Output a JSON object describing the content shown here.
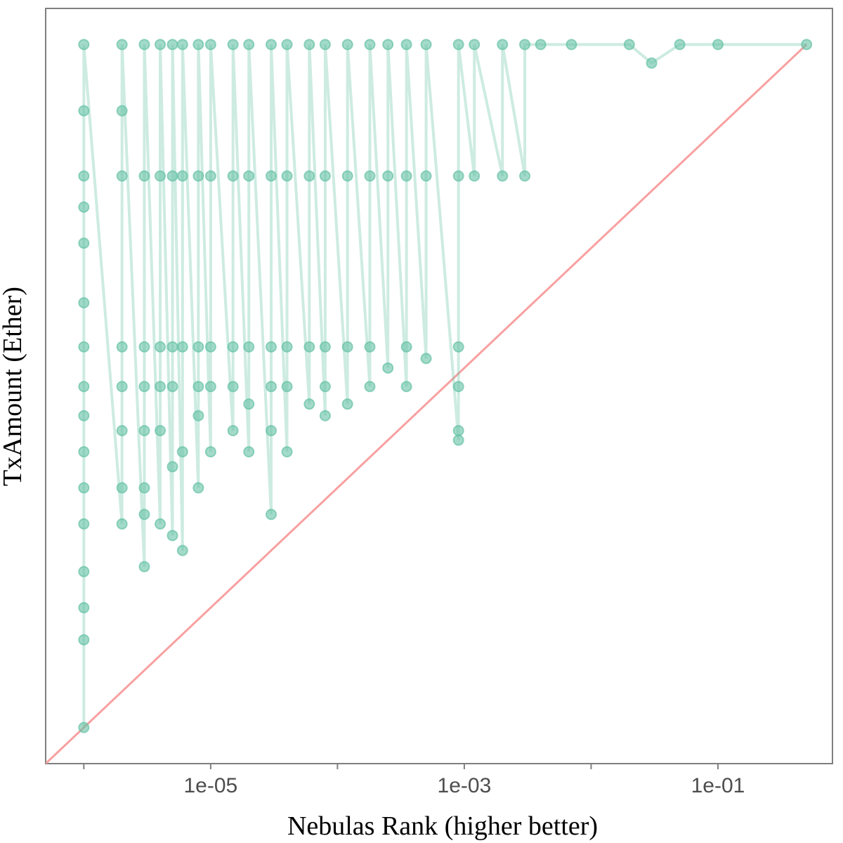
{
  "chart_data": {
    "type": "line-scatter",
    "x_label": "Nebulas Rank (higher better)",
    "y_label": "TxAmount (Ether)",
    "xscale": "log",
    "yscale": "log",
    "xlim": [
      5e-07,
      0.8
    ],
    "ylim": [
      5e-07,
      1
    ],
    "xticks": [
      {
        "value": 1e-05,
        "label": "1e-05"
      },
      {
        "value": 0.001,
        "label": "1e-03"
      },
      {
        "value": 0.1,
        "label": "1e-01"
      }
    ],
    "xticks_minor": [
      1e-06,
      0.0001,
      0.01
    ],
    "series": [
      {
        "color": "#66c2a5",
        "x": [
          1e-06,
          1e-06,
          1e-06,
          1e-06,
          1e-06,
          1e-06,
          1e-06,
          1e-06,
          1e-06,
          1e-06,
          1e-06,
          1e-06,
          1e-06,
          1e-06,
          1e-06,
          1e-06,
          2e-06,
          2e-06,
          2e-06,
          2e-06,
          2e-06,
          2e-06,
          2e-06,
          2e-06,
          3e-06,
          3e-06,
          3e-06,
          3e-06,
          3e-06,
          3e-06,
          3e-06,
          3e-06,
          4e-06,
          4e-06,
          4e-06,
          4e-06,
          4e-06,
          4e-06,
          5e-06,
          5e-06,
          5e-06,
          5e-06,
          5e-06,
          5e-06,
          6e-06,
          6e-06,
          6e-06,
          6e-06,
          6e-06,
          8e-06,
          8e-06,
          8e-06,
          8e-06,
          8e-06,
          8e-06,
          1e-05,
          1e-05,
          1e-05,
          1e-05,
          1e-05,
          1.5e-05,
          1.5e-05,
          1.5e-05,
          1.5e-05,
          1.5e-05,
          2e-05,
          2e-05,
          2e-05,
          2e-05,
          2e-05,
          3e-05,
          3e-05,
          3e-05,
          3e-05,
          3e-05,
          3e-05,
          4e-05,
          4e-05,
          4e-05,
          4e-05,
          4e-05,
          6e-05,
          6e-05,
          6e-05,
          6e-05,
          8e-05,
          8e-05,
          8e-05,
          8e-05,
          8e-05,
          0.00012,
          0.00012,
          0.00012,
          0.00012,
          0.00018,
          0.00018,
          0.00018,
          0.00018,
          0.00025,
          0.00025,
          0.00025,
          0.00035,
          0.00035,
          0.00035,
          0.00035,
          0.0005,
          0.0005,
          0.0005,
          0.0009,
          0.0009,
          0.0009,
          0.0009,
          0.0009,
          0.0009,
          0.0012,
          0.0012,
          0.002,
          0.002,
          0.003,
          0.003,
          0.004,
          0.007,
          0.02,
          0.03,
          0.05,
          0.1,
          0.5
        ],
        "values": [
          1e-06,
          5.4e-06,
          1e-05,
          2e-05,
          5e-05,
          0.0001,
          0.0002,
          0.0004,
          0.0007,
          0.0015,
          0.0035,
          0.011,
          0.022,
          0.04,
          0.14,
          0.5,
          5e-05,
          0.0001,
          0.0003,
          0.0007,
          0.0015,
          0.04,
          0.14,
          0.5,
          2.2e-05,
          6e-05,
          0.0001,
          0.0003,
          0.0007,
          0.0015,
          0.04,
          0.5,
          5e-05,
          0.0003,
          0.0007,
          0.0015,
          0.04,
          0.5,
          4e-05,
          0.00015,
          0.0007,
          0.0015,
          0.04,
          0.5,
          3e-05,
          0.0002,
          0.0015,
          0.04,
          0.5,
          0.0001,
          0.0004,
          0.0007,
          0.0015,
          0.04,
          0.5,
          0.0002,
          0.0007,
          0.0015,
          0.04,
          0.5,
          0.0003,
          0.0007,
          0.0015,
          0.04,
          0.5,
          0.0002,
          0.0005,
          0.0015,
          0.04,
          0.5,
          6e-05,
          0.0003,
          0.0007,
          0.0015,
          0.04,
          0.5,
          0.0002,
          0.0007,
          0.0015,
          0.04,
          0.5,
          0.0005,
          0.0015,
          0.04,
          0.5,
          0.0004,
          0.0007,
          0.0015,
          0.04,
          0.5,
          0.0005,
          0.0015,
          0.04,
          0.5,
          0.0007,
          0.0015,
          0.04,
          0.5,
          0.001,
          0.04,
          0.5,
          0.0007,
          0.0015,
          0.04,
          0.5,
          0.0012,
          0.04,
          0.5,
          0.00025,
          0.0003,
          0.0007,
          0.0015,
          0.04,
          0.5,
          0.04,
          0.5,
          0.04,
          0.5,
          0.04,
          0.5,
          0.5,
          0.5,
          0.5,
          0.35,
          0.5,
          0.5,
          0.5
        ]
      }
    ],
    "reference_line": {
      "x": [
        5e-07,
        0.5
      ],
      "values": [
        5e-07,
        0.5
      ],
      "color": "#f8a0a0"
    }
  }
}
